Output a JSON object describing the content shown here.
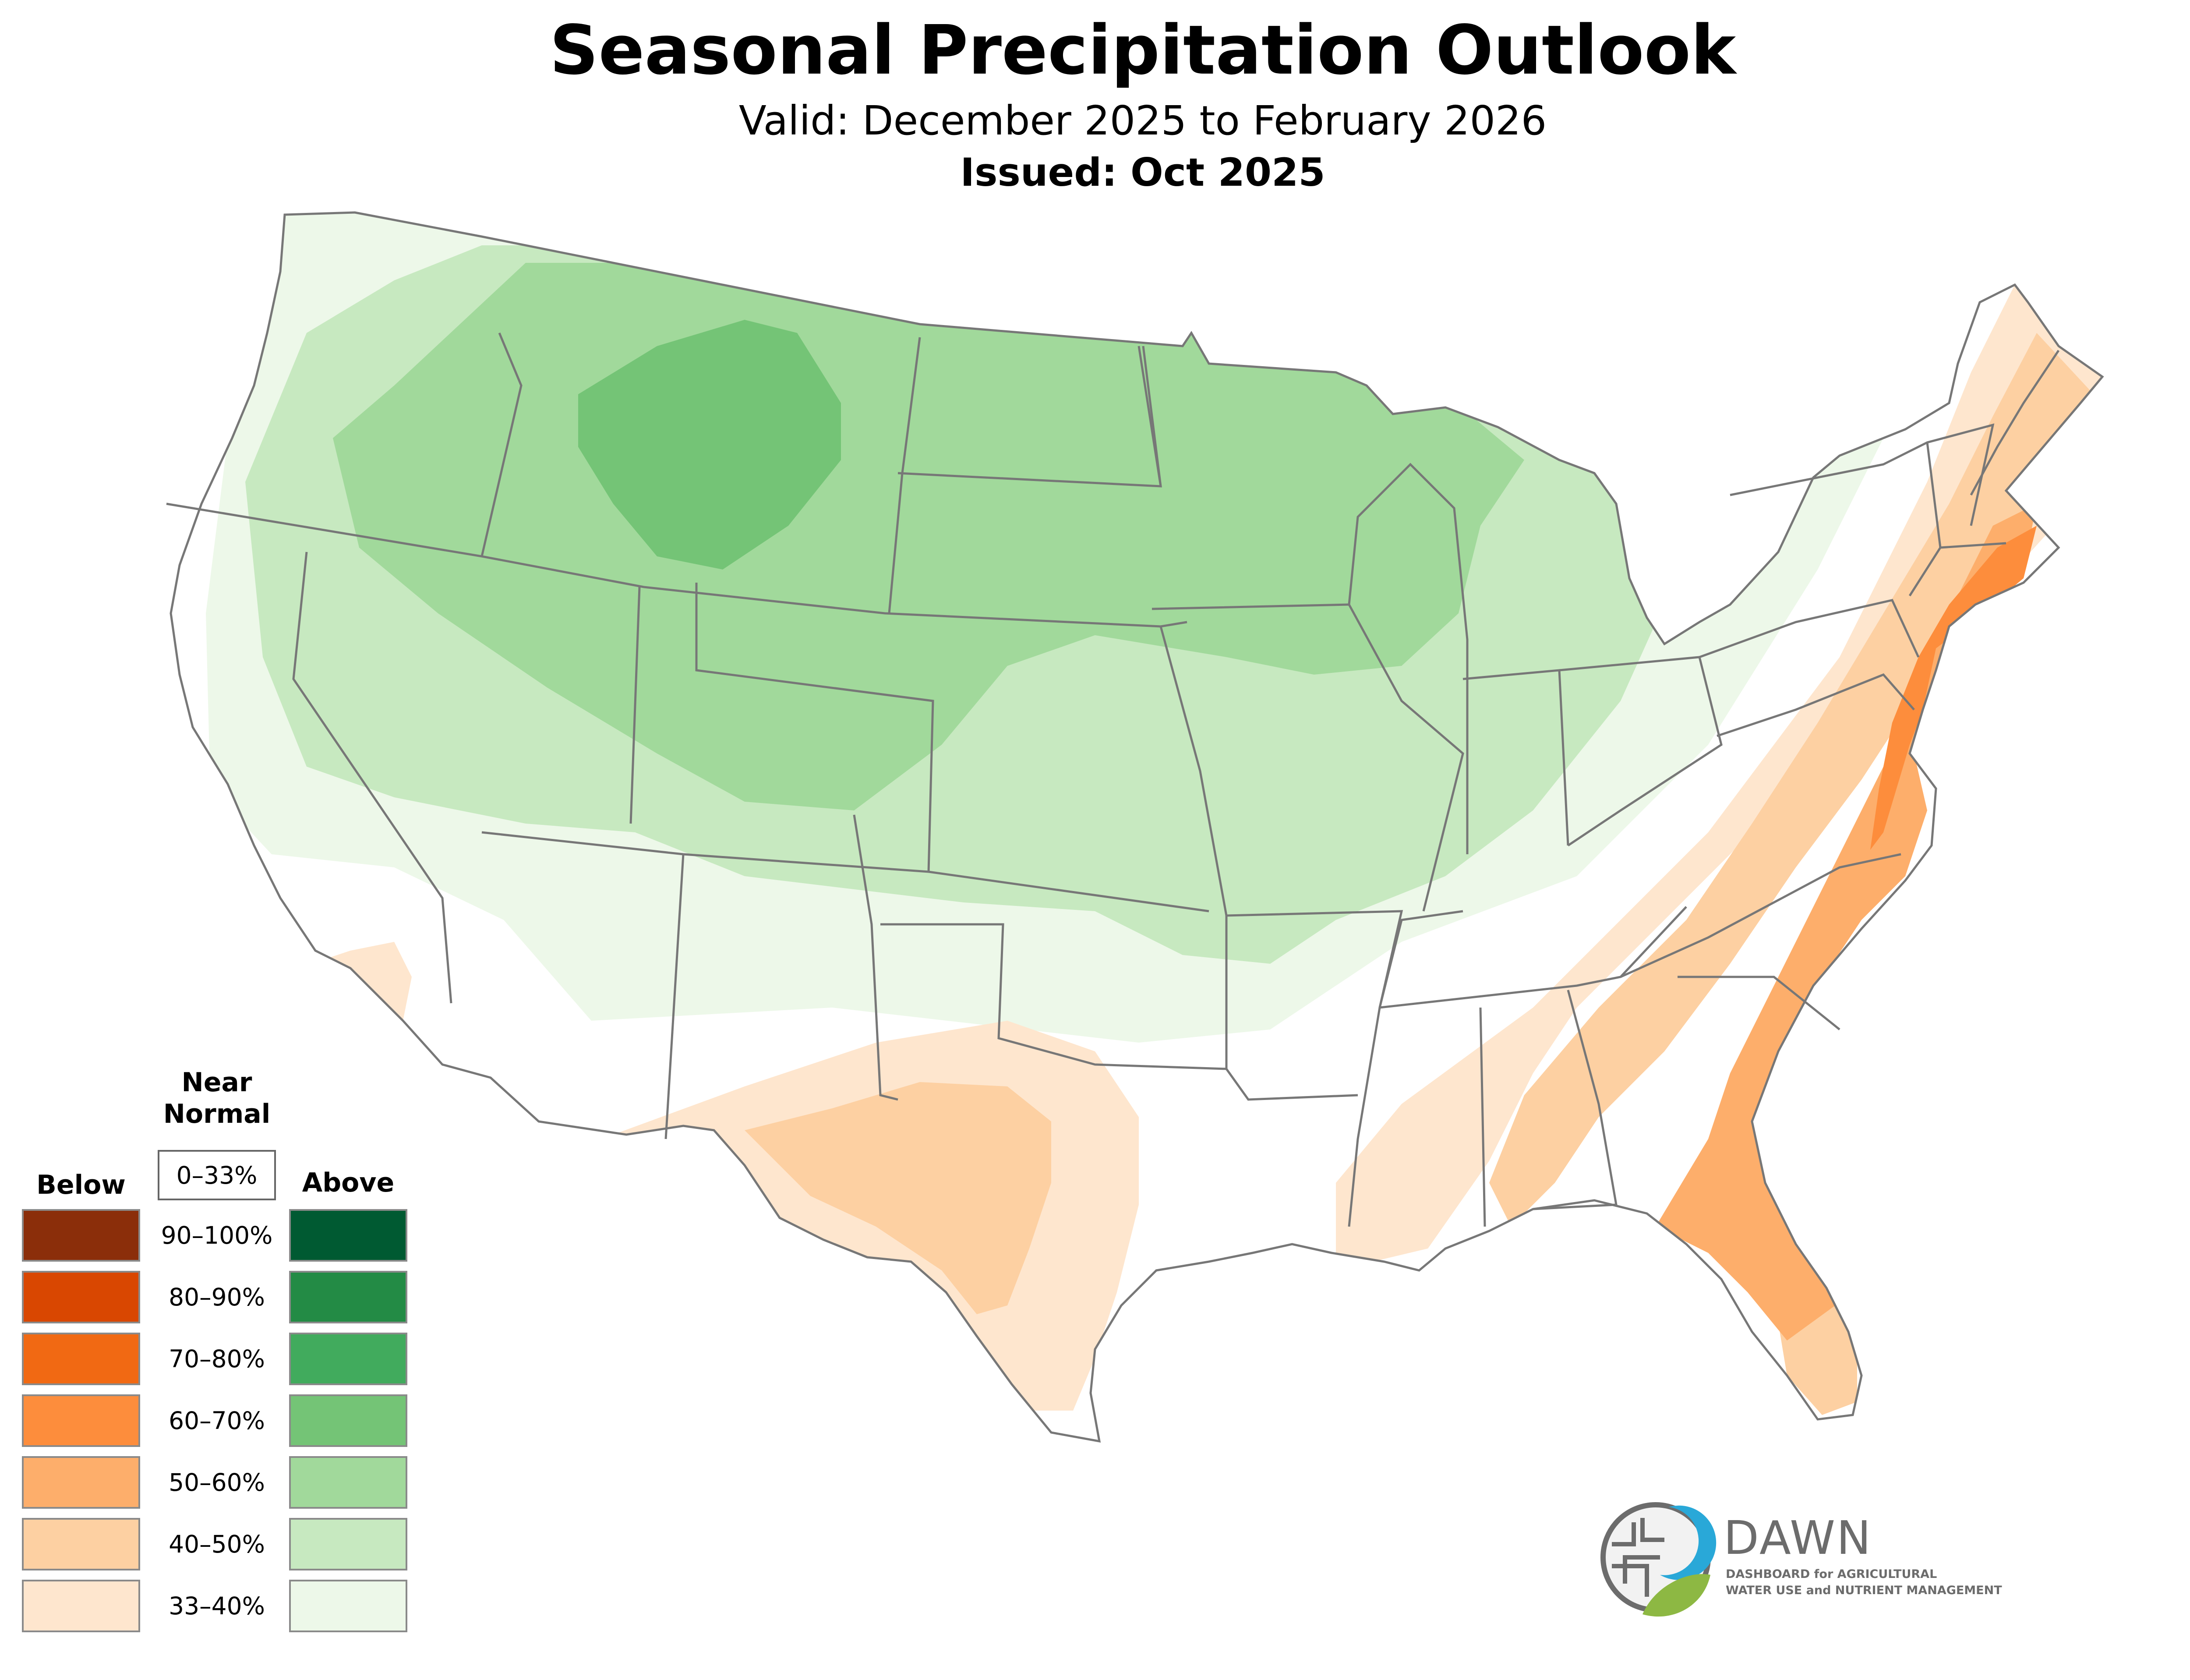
{
  "header": {
    "title": "Seasonal Precipitation Outlook",
    "subtitle": "Valid: December 2025 to February 2026",
    "issued": "Issued: Oct 2025"
  },
  "legend": {
    "near_normal_title": "Near\nNormal",
    "near_normal_range": "0–33%",
    "below_label": "Below",
    "above_label": "Above",
    "rows": [
      {
        "range": "90–100%",
        "below_color": "#8B2E0A",
        "above_color": "#005A32"
      },
      {
        "range": "80–90%",
        "below_color": "#D94701",
        "above_color": "#238B45"
      },
      {
        "range": "70–80%",
        "below_color": "#F16913",
        "above_color": "#41AB5D"
      },
      {
        "range": "60–70%",
        "below_color": "#FD8D3C",
        "above_color": "#74C476"
      },
      {
        "range": "50–60%",
        "below_color": "#FDAE6B",
        "above_color": "#A1D99B"
      },
      {
        "range": "40–50%",
        "below_color": "#FDD0A2",
        "above_color": "#C7E9C0"
      },
      {
        "range": "33–40%",
        "below_color": "#FEE6CE",
        "above_color": "#EDF8E9"
      }
    ]
  },
  "map": {
    "border_color": "#777777",
    "region": "Contiguous United States"
  },
  "logo": {
    "name": "DAWN",
    "line1": "DASHBOARD for AGRICULTURAL",
    "line2": "WATER USE and NUTRIENT MANAGEMENT",
    "blue": "#29A8D8",
    "green": "#8DB843",
    "gray": "#6C6C6C"
  }
}
